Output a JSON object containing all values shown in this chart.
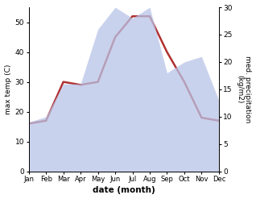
{
  "months": [
    "Jan",
    "Feb",
    "Mar",
    "Apr",
    "May",
    "Jun",
    "Jul",
    "Aug",
    "Sep",
    "Oct",
    "Nov",
    "Dec"
  ],
  "temp": [
    16,
    17,
    30,
    29,
    30,
    45,
    52,
    52,
    40,
    30,
    18,
    17
  ],
  "precip": [
    9,
    10,
    16,
    16,
    26,
    30,
    28,
    30,
    18,
    20,
    21,
    13
  ],
  "temp_color": "#b03030",
  "precip_fill_color": "#b8c4e8",
  "precip_alpha": 0.75,
  "xlabel": "date (month)",
  "ylabel_left": "max temp (C)",
  "ylabel_right": "med. precipitation\n(kg/m2)",
  "ylim_left": [
    0,
    55
  ],
  "ylim_right": [
    0,
    30
  ],
  "yticks_left": [
    0,
    10,
    20,
    30,
    40,
    50
  ],
  "yticks_right": [
    0,
    5,
    10,
    15,
    20,
    25,
    30
  ],
  "background_color": "#ffffff",
  "line_width": 1.8
}
